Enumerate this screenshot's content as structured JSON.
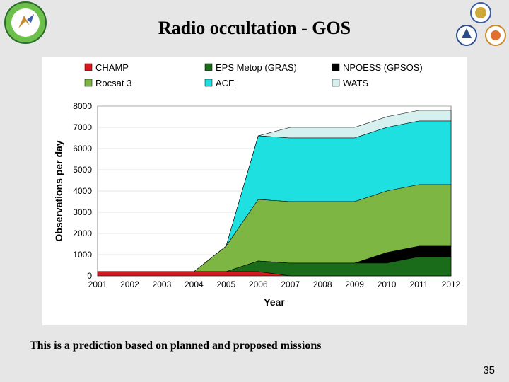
{
  "title": "Radio occultation - GOS",
  "caption": "This is a prediction based on planned and proposed missions",
  "page_number": "35",
  "chart": {
    "type": "stacked-area",
    "background_color": "#ffffff",
    "grid_color": "#000000",
    "axis_fontsize": 13,
    "tick_fontsize": 12,
    "xlabel": "Year",
    "ylabel": "Observations per day",
    "xlabel_fontsize": 14,
    "ylabel_fontsize": 14,
    "x_categories": [
      "2001",
      "2002",
      "2003",
      "2004",
      "2005",
      "2006",
      "2007",
      "2008",
      "2009",
      "2010",
      "2011",
      "2012"
    ],
    "ylim": [
      0,
      8000
    ],
    "ytick_step": 1000,
    "legend_fontsize": 13,
    "series": [
      {
        "name": "CHAMP",
        "color": "#d8181c",
        "values": [
          200,
          200,
          200,
          200,
          200,
          200,
          0,
          0,
          0,
          0,
          0,
          0
        ]
      },
      {
        "name": "EPS Metop (GRAS)",
        "color": "#1a6b1a",
        "values": [
          0,
          0,
          0,
          0,
          0,
          500,
          600,
          600,
          600,
          600,
          900,
          900
        ]
      },
      {
        "name": "NPOESS (GPSOS)",
        "color": "#000000",
        "values": [
          0,
          0,
          0,
          0,
          0,
          0,
          0,
          0,
          0,
          500,
          500,
          500
        ]
      },
      {
        "name": "Rocsat 3",
        "color": "#7db642",
        "values": [
          0,
          0,
          0,
          0,
          1200,
          2900,
          2900,
          2900,
          2900,
          2900,
          2900,
          2900
        ]
      },
      {
        "name": "ACE",
        "color": "#1ee0e0",
        "values": [
          0,
          0,
          0,
          0,
          0,
          3000,
          3000,
          3000,
          3000,
          3000,
          3000,
          3000
        ]
      },
      {
        "name": "WATS",
        "color": "#d6f0f0",
        "values": [
          0,
          0,
          0,
          0,
          0,
          0,
          500,
          500,
          500,
          500,
          500,
          500
        ]
      }
    ]
  }
}
